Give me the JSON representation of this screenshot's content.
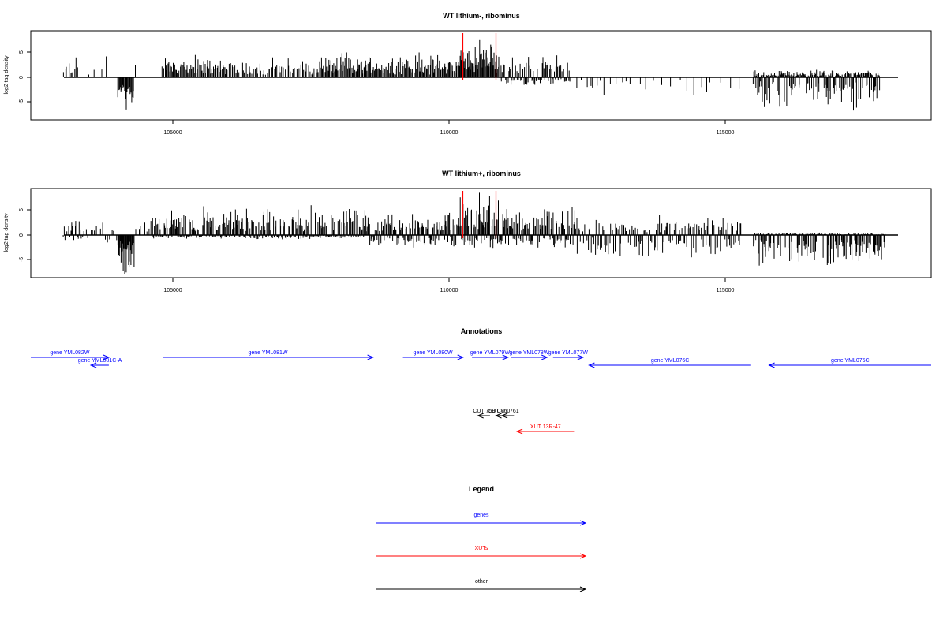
{
  "chart_data": [
    {
      "type": "bar",
      "title": "WT lithium-, ribominus",
      "ylabel": "log2 tag density",
      "xlabel": "",
      "xlim": [
        103000,
        118000
      ],
      "ylim": [
        -8,
        8
      ],
      "xticks": [
        "105000",
        "110000",
        "115000"
      ],
      "yticks": [
        "-5",
        "0",
        "5"
      ],
      "highlight_positions": [
        110250,
        110850
      ],
      "highlight_color": "#ff0000",
      "bar_color": "#000000",
      "profile": [
        {
          "start": 103000,
          "end": 103200,
          "min": 0,
          "max": 2.8,
          "count": 6
        },
        {
          "start": 103200,
          "end": 103300,
          "min": 0,
          "max": 4.0,
          "count": 3
        },
        {
          "start": 103400,
          "end": 103600,
          "min": 0,
          "max": 1.5,
          "count": 2
        },
        {
          "start": 103700,
          "end": 103800,
          "min": 0,
          "max": 4.2,
          "count": 2
        },
        {
          "start": 104000,
          "end": 104300,
          "min": -6.5,
          "max": 0,
          "count": 22
        },
        {
          "start": 104300,
          "end": 104400,
          "min": 0,
          "max": 2.5,
          "count": 1
        },
        {
          "start": 104800,
          "end": 106000,
          "min": 0,
          "max": 4.5,
          "count": 70
        },
        {
          "start": 106000,
          "end": 107600,
          "min": 0,
          "max": 4.0,
          "count": 60
        },
        {
          "start": 107600,
          "end": 108700,
          "min": 0,
          "max": 5.0,
          "count": 75
        },
        {
          "start": 108700,
          "end": 110200,
          "min": 0,
          "max": 5.0,
          "count": 90
        },
        {
          "start": 110200,
          "end": 110900,
          "min": 0,
          "max": 7.5,
          "count": 55
        },
        {
          "start": 110900,
          "end": 112200,
          "min": -1.5,
          "max": 5.0,
          "count": 90
        },
        {
          "start": 112300,
          "end": 113300,
          "min": -3.5,
          "max": 0,
          "count": 14
        },
        {
          "start": 113400,
          "end": 115300,
          "min": -3.5,
          "max": 0,
          "count": 16
        },
        {
          "start": 115500,
          "end": 117800,
          "min": -6.0,
          "max": 1.5,
          "count": 230
        }
      ]
    },
    {
      "type": "bar",
      "title": "WT lithium+, ribominus",
      "ylabel": "log2 tag density",
      "xlabel": "",
      "xlim": [
        103000,
        118000
      ],
      "ylim": [
        -8,
        8
      ],
      "xticks": [
        "105000",
        "110000",
        "115000"
      ],
      "yticks": [
        "-5",
        "0",
        "5"
      ],
      "highlight_positions": [
        110250,
        110850
      ],
      "highlight_color": "#ff0000",
      "bar_color": "#000000",
      "profile": [
        {
          "start": 103000,
          "end": 103400,
          "min": -1.0,
          "max": 3.0,
          "count": 20
        },
        {
          "start": 103400,
          "end": 104000,
          "min": -2.0,
          "max": 2.5,
          "count": 14
        },
        {
          "start": 104000,
          "end": 104300,
          "min": -7.5,
          "max": 0,
          "count": 30
        },
        {
          "start": 104300,
          "end": 104600,
          "min": 0,
          "max": 2.5,
          "count": 6
        },
        {
          "start": 104600,
          "end": 106500,
          "min": -0.8,
          "max": 5.8,
          "count": 160
        },
        {
          "start": 106500,
          "end": 108500,
          "min": -0.8,
          "max": 6.0,
          "count": 160
        },
        {
          "start": 108500,
          "end": 110200,
          "min": -2.5,
          "max": 5.5,
          "count": 130
        },
        {
          "start": 110200,
          "end": 110900,
          "min": -2.5,
          "max": 8.5,
          "count": 65
        },
        {
          "start": 110900,
          "end": 112300,
          "min": -2.5,
          "max": 6.5,
          "count": 110
        },
        {
          "start": 112300,
          "end": 115300,
          "min": -4.5,
          "max": 4.0,
          "count": 160
        },
        {
          "start": 115500,
          "end": 117900,
          "min": -6.5,
          "max": 0.5,
          "count": 240
        }
      ]
    }
  ],
  "annotations": {
    "title": "Annotations",
    "axis_range": [
      103000,
      118000
    ],
    "features": [
      {
        "label": "gene YML082W",
        "kind": "genes",
        "strand": "+",
        "start": 103000,
        "end": 104300,
        "row": 0
      },
      {
        "label": "gene YML081C-A",
        "kind": "genes",
        "strand": "-",
        "start": 104000,
        "end": 104300,
        "row": 1
      },
      {
        "label": "gene YML081W",
        "kind": "genes",
        "strand": "+",
        "start": 105200,
        "end": 108700,
        "row": 0
      },
      {
        "label": "gene YML080W",
        "kind": "genes",
        "strand": "+",
        "start": 109200,
        "end": 110200,
        "row": 0
      },
      {
        "label": "gene YML079W",
        "kind": "genes",
        "strand": "+",
        "start": 110350,
        "end": 110950,
        "row": 0
      },
      {
        "label": "gene YML078W",
        "kind": "genes",
        "strand": "+",
        "start": 111000,
        "end": 111600,
        "row": 0
      },
      {
        "label": "gene YML077W",
        "kind": "genes",
        "strand": "+",
        "start": 111700,
        "end": 112200,
        "row": 0
      },
      {
        "label": "gene YML076C",
        "kind": "genes",
        "strand": "-",
        "start": 112300,
        "end": 115000,
        "row": 1
      },
      {
        "label": "gene YML075C",
        "kind": "genes",
        "strand": "-",
        "start": 115300,
        "end": 118000,
        "row": 1
      },
      {
        "label": "CUT 759",
        "kind": "other",
        "strand": "-",
        "start": 110450,
        "end": 110650,
        "row": 2
      },
      {
        "label": "CUT 760",
        "kind": "other",
        "strand": "-",
        "start": 110750,
        "end": 110850,
        "row": 2
      },
      {
        "label": "CUT 761",
        "kind": "other",
        "strand": "-",
        "start": 110850,
        "end": 111050,
        "row": 2
      },
      {
        "label": "XUT 13R-47",
        "kind": "XUTs",
        "strand": "-",
        "start": 111100,
        "end": 112050,
        "row": 3
      }
    ]
  },
  "legend": {
    "title": "Legend",
    "items": [
      {
        "label": "genes",
        "color": "#0000ff"
      },
      {
        "label": "XUTs",
        "color": "#ff0000"
      },
      {
        "label": "other",
        "color": "#000000"
      }
    ]
  }
}
